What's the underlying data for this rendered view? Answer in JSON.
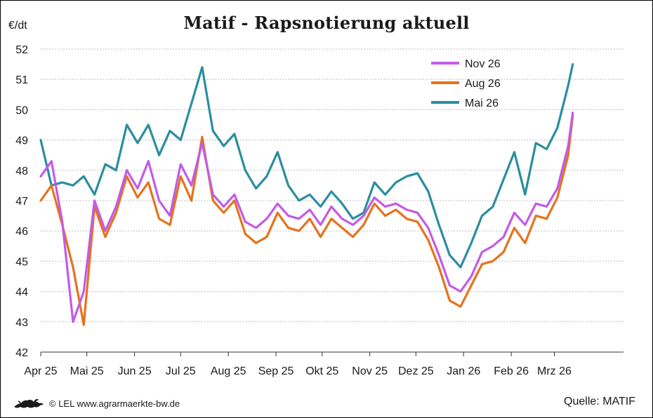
{
  "header": {
    "title": "Matif - Rapsnotierung aktuell",
    "unit": "€/dt"
  },
  "footer": {
    "credit": "© LEL www.agrarmaerkte-bw.de",
    "source": "Quelle: MATIF",
    "logo_icon": "lion-logo-icon"
  },
  "chart_data": {
    "type": "line",
    "title": "Matif - Rapsnotierung aktuell",
    "ylabel": "€/dt",
    "ylim": [
      42,
      52
    ],
    "yticks": [
      42,
      43,
      44,
      45,
      46,
      47,
      48,
      49,
      50,
      51,
      52
    ],
    "xlim": [
      "2025-04-01",
      "2026-04-15"
    ],
    "x_tick_labels": [
      "Apr 25",
      "Mai 25",
      "Jun 25",
      "Jul 25",
      "Aug 25",
      "Sep 25",
      "Okt 25",
      "Nov 25",
      "Dez 25",
      "Jan 26",
      "Feb 26",
      "Mrz 26"
    ],
    "x_tick_dates": [
      "2025-04-01",
      "2025-05-01",
      "2025-06-01",
      "2025-07-01",
      "2025-08-01",
      "2025-09-01",
      "2025-10-01",
      "2025-11-01",
      "2025-12-01",
      "2026-01-01",
      "2026-02-01",
      "2026-03-01"
    ],
    "grid": "horizontal dotted",
    "legend_position": "top-right",
    "x": [
      "2025-04-01",
      "2025-04-08",
      "2025-04-15",
      "2025-04-22",
      "2025-04-29",
      "2025-05-06",
      "2025-05-13",
      "2025-05-20",
      "2025-05-27",
      "2025-06-03",
      "2025-06-10",
      "2025-06-17",
      "2025-06-24",
      "2025-07-01",
      "2025-07-08",
      "2025-07-15",
      "2025-07-22",
      "2025-07-29",
      "2025-08-05",
      "2025-08-12",
      "2025-08-19",
      "2025-08-26",
      "2025-09-02",
      "2025-09-09",
      "2025-09-16",
      "2025-09-23",
      "2025-09-30",
      "2025-10-07",
      "2025-10-14",
      "2025-10-21",
      "2025-10-28",
      "2025-11-04",
      "2025-11-11",
      "2025-11-18",
      "2025-11-25",
      "2025-12-02",
      "2025-12-09",
      "2025-12-16",
      "2025-12-23",
      "2025-12-30",
      "2026-01-06",
      "2026-01-13",
      "2026-01-20",
      "2026-01-27",
      "2026-02-03",
      "2026-02-10",
      "2026-02-17",
      "2026-02-24",
      "2026-03-03",
      "2026-03-10",
      "2026-03-13"
    ],
    "series": [
      {
        "name": "Nov 26",
        "color": "#c25be8",
        "values": [
          47.8,
          48.3,
          46.3,
          43.0,
          44.0,
          47.0,
          46.0,
          46.8,
          48.0,
          47.4,
          48.3,
          47.0,
          46.5,
          48.2,
          47.5,
          48.9,
          47.2,
          46.8,
          47.2,
          46.3,
          46.1,
          46.4,
          46.9,
          46.5,
          46.4,
          46.7,
          46.2,
          46.8,
          46.4,
          46.2,
          46.5,
          47.1,
          46.8,
          46.9,
          46.7,
          46.6,
          46.1,
          45.2,
          44.2,
          44.0,
          44.5,
          45.3,
          45.5,
          45.8,
          46.6,
          46.2,
          46.9,
          46.8,
          47.4,
          48.8,
          49.9
        ]
      },
      {
        "name": "Aug 26",
        "color": "#e5731c",
        "values": [
          47.0,
          47.5,
          46.2,
          44.8,
          42.9,
          46.8,
          45.8,
          46.6,
          47.8,
          47.1,
          47.6,
          46.4,
          46.2,
          47.8,
          47.0,
          49.1,
          47.0,
          46.6,
          47.0,
          45.9,
          45.6,
          45.8,
          46.6,
          46.1,
          46.0,
          46.4,
          45.8,
          46.4,
          46.1,
          45.8,
          46.2,
          46.9,
          46.5,
          46.7,
          46.4,
          46.3,
          45.7,
          44.8,
          43.7,
          43.5,
          44.2,
          44.9,
          45.0,
          45.3,
          46.1,
          45.6,
          46.5,
          46.4,
          47.1,
          48.5,
          49.8
        ]
      },
      {
        "name": "Mai 26",
        "color": "#2b8e9e",
        "values": [
          49.0,
          47.5,
          47.6,
          47.5,
          47.8,
          47.2,
          48.2,
          48.0,
          49.5,
          48.9,
          49.5,
          48.5,
          49.3,
          49.0,
          50.2,
          51.4,
          49.3,
          48.8,
          49.2,
          48.0,
          47.4,
          47.8,
          48.6,
          47.5,
          47.0,
          47.2,
          46.8,
          47.3,
          46.9,
          46.4,
          46.6,
          47.6,
          47.2,
          47.6,
          47.8,
          47.9,
          47.3,
          46.2,
          45.2,
          44.8,
          45.6,
          46.5,
          46.8,
          47.7,
          48.6,
          47.2,
          48.9,
          48.7,
          49.4,
          50.8,
          51.5
        ]
      }
    ]
  }
}
